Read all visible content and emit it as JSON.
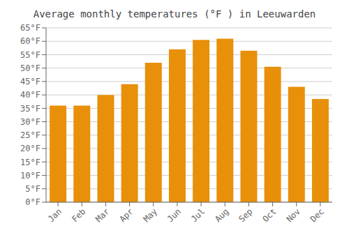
{
  "chart_data": {
    "type": "bar",
    "title": "Average monthly temperatures (°F ) in Leeuwarden",
    "categories": [
      "Jan",
      "Feb",
      "Mar",
      "Apr",
      "May",
      "Jun",
      "Jul",
      "Aug",
      "Sep",
      "Oct",
      "Nov",
      "Dec"
    ],
    "values": [
      36,
      36,
      40,
      44,
      52,
      57,
      60.5,
      61,
      56.5,
      50.5,
      43,
      38.5
    ],
    "color": "#E8900A",
    "ylim": [
      0,
      65
    ],
    "yticks": [
      {
        "value": 0,
        "label": "0°F"
      },
      {
        "value": 5,
        "label": "5°F"
      },
      {
        "value": 10,
        "label": "10°F"
      },
      {
        "value": 15,
        "label": "15°F"
      },
      {
        "value": 20,
        "label": "20°F"
      },
      {
        "value": 25,
        "label": "25°F"
      },
      {
        "value": 30,
        "label": "30°F"
      },
      {
        "value": 35,
        "label": "35°F"
      },
      {
        "value": 40,
        "label": "40°F"
      },
      {
        "value": 45,
        "label": "45°F"
      },
      {
        "value": 50,
        "label": "50°F"
      },
      {
        "value": 55,
        "label": "55°F"
      },
      {
        "value": 60,
        "label": "60°F"
      },
      {
        "value": 65,
        "label": "65°F"
      }
    ],
    "grid": true
  }
}
